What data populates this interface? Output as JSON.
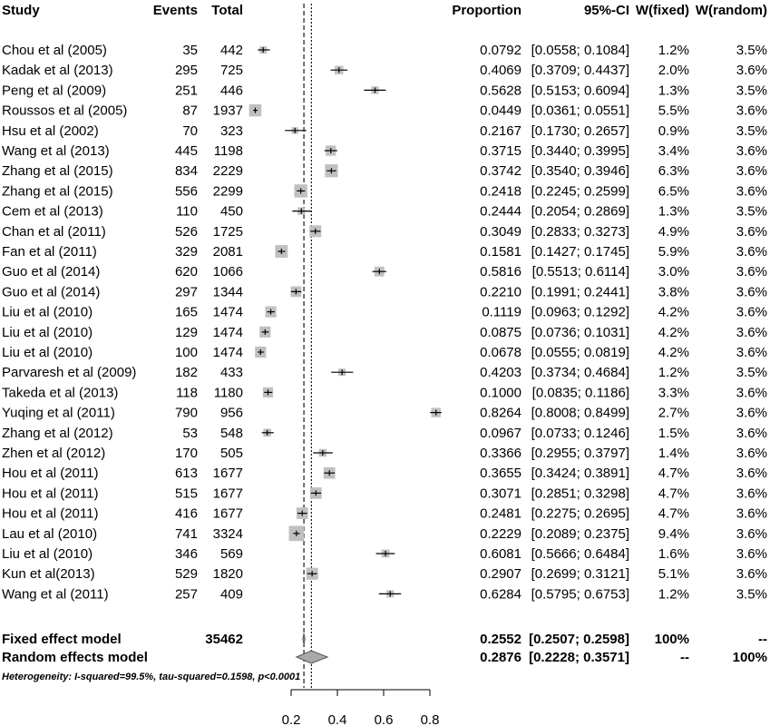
{
  "chart_data": {
    "type": "forest",
    "headers": {
      "study": "Study",
      "events": "Events",
      "total": "Total",
      "proportion": "Proportion",
      "ci": "95%-CI",
      "w_fixed": "W(fixed)",
      "w_random": "W(random)"
    },
    "studies": [
      {
        "name": "Chou et al (2005)",
        "events": "35",
        "total": "442",
        "prop": 0.0792,
        "lo": 0.0558,
        "hi": 0.1084,
        "prop_text": "0.0792",
        "ci_text": "[0.0558; 0.1084]",
        "w_fixed": "1.2%",
        "w_random": "3.5%",
        "wf": 1.2
      },
      {
        "name": "Kadak et al (2013)",
        "events": "295",
        "total": "725",
        "prop": 0.4069,
        "lo": 0.3709,
        "hi": 0.4437,
        "prop_text": "0.4069",
        "ci_text": "[0.3709; 0.4437]",
        "w_fixed": "2.0%",
        "w_random": "3.6%",
        "wf": 2.0
      },
      {
        "name": "Peng et al (2009)",
        "events": "251",
        "total": "446",
        "prop": 0.5628,
        "lo": 0.5153,
        "hi": 0.6094,
        "prop_text": "0.5628",
        "ci_text": "[0.5153; 0.6094]",
        "w_fixed": "1.3%",
        "w_random": "3.5%",
        "wf": 1.3
      },
      {
        "name": "Roussos et al (2005)",
        "events": "87",
        "total": "1937",
        "prop": 0.0449,
        "lo": 0.0361,
        "hi": 0.0551,
        "prop_text": "0.0449",
        "ci_text": "[0.0361; 0.0551]",
        "w_fixed": "5.5%",
        "w_random": "3.6%",
        "wf": 5.5
      },
      {
        "name": "Hsu et al (2002)",
        "events": "70",
        "total": "323",
        "prop": 0.2167,
        "lo": 0.173,
        "hi": 0.2657,
        "prop_text": "0.2167",
        "ci_text": "[0.1730; 0.2657]",
        "w_fixed": "0.9%",
        "w_random": "3.5%",
        "wf": 0.9
      },
      {
        "name": "Wang et al (2013)",
        "events": "445",
        "total": "1198",
        "prop": 0.3715,
        "lo": 0.344,
        "hi": 0.3995,
        "prop_text": "0.3715",
        "ci_text": "[0.3440; 0.3995]",
        "w_fixed": "3.4%",
        "w_random": "3.6%",
        "wf": 3.4
      },
      {
        "name": "Zhang et al (2015)",
        "events": "834",
        "total": "2229",
        "prop": 0.3742,
        "lo": 0.354,
        "hi": 0.3946,
        "prop_text": "0.3742",
        "ci_text": "[0.3540; 0.3946]",
        "w_fixed": "6.3%",
        "w_random": "3.6%",
        "wf": 6.3
      },
      {
        "name": "Zhang et al (2015)",
        "events": "556",
        "total": "2299",
        "prop": 0.2418,
        "lo": 0.2245,
        "hi": 0.2599,
        "prop_text": "0.2418",
        "ci_text": "[0.2245; 0.2599]",
        "w_fixed": "6.5%",
        "w_random": "3.6%",
        "wf": 6.5
      },
      {
        "name": "Cem et al (2013)",
        "events": "110",
        "total": "450",
        "prop": 0.2444,
        "lo": 0.2054,
        "hi": 0.2869,
        "prop_text": "0.2444",
        "ci_text": "[0.2054; 0.2869]",
        "w_fixed": "1.3%",
        "w_random": "3.5%",
        "wf": 1.3
      },
      {
        "name": "Chan et al (2011)",
        "events": "526",
        "total": "1725",
        "prop": 0.3049,
        "lo": 0.2833,
        "hi": 0.3273,
        "prop_text": "0.3049",
        "ci_text": "[0.2833; 0.3273]",
        "w_fixed": "4.9%",
        "w_random": "3.6%",
        "wf": 4.9
      },
      {
        "name": "Fan et al (2011)",
        "events": "329",
        "total": "2081",
        "prop": 0.1581,
        "lo": 0.1427,
        "hi": 0.1745,
        "prop_text": "0.1581",
        "ci_text": "[0.1427; 0.1745]",
        "w_fixed": "5.9%",
        "w_random": "3.6%",
        "wf": 5.9
      },
      {
        "name": "Guo et al (2014)",
        "events": "620",
        "total": "1066",
        "prop": 0.5816,
        "lo": 0.5513,
        "hi": 0.6114,
        "prop_text": "0.5816",
        "ci_text": "[0.5513; 0.6114]",
        "w_fixed": "3.0%",
        "w_random": "3.6%",
        "wf": 3.0
      },
      {
        "name": "Guo et al (2014)",
        "events": "297",
        "total": "1344",
        "prop": 0.221,
        "lo": 0.1991,
        "hi": 0.2441,
        "prop_text": "0.2210",
        "ci_text": "[0.1991; 0.2441]",
        "w_fixed": "3.8%",
        "w_random": "3.6%",
        "wf": 3.8
      },
      {
        "name": "Liu et al (2010)",
        "events": "165",
        "total": "1474",
        "prop": 0.1119,
        "lo": 0.0963,
        "hi": 0.1292,
        "prop_text": "0.1119",
        "ci_text": "[0.0963; 0.1292]",
        "w_fixed": "4.2%",
        "w_random": "3.6%",
        "wf": 4.2
      },
      {
        "name": "Liu et al (2010)",
        "events": "129",
        "total": "1474",
        "prop": 0.0875,
        "lo": 0.0736,
        "hi": 0.1031,
        "prop_text": "0.0875",
        "ci_text": "[0.0736; 0.1031]",
        "w_fixed": "4.2%",
        "w_random": "3.6%",
        "wf": 4.2
      },
      {
        "name": "Liu et al (2010)",
        "events": "100",
        "total": "1474",
        "prop": 0.0678,
        "lo": 0.0555,
        "hi": 0.0819,
        "prop_text": "0.0678",
        "ci_text": "[0.0555; 0.0819]",
        "w_fixed": "4.2%",
        "w_random": "3.6%",
        "wf": 4.2
      },
      {
        "name": "Parvaresh et al (2009)",
        "events": "182",
        "total": "433",
        "prop": 0.4203,
        "lo": 0.3734,
        "hi": 0.4684,
        "prop_text": "0.4203",
        "ci_text": "[0.3734; 0.4684]",
        "w_fixed": "1.2%",
        "w_random": "3.5%",
        "wf": 1.2
      },
      {
        "name": "Takeda et al (2013)",
        "events": "118",
        "total": "1180",
        "prop": 0.1,
        "lo": 0.0835,
        "hi": 0.1186,
        "prop_text": "0.1000",
        "ci_text": "[0.0835; 0.1186]",
        "w_fixed": "3.3%",
        "w_random": "3.6%",
        "wf": 3.3
      },
      {
        "name": "Yuqing et al (2011)",
        "events": "790",
        "total": "956",
        "prop": 0.8264,
        "lo": 0.8008,
        "hi": 0.8499,
        "prop_text": "0.8264",
        "ci_text": "[0.8008; 0.8499]",
        "w_fixed": "2.7%",
        "w_random": "3.6%",
        "wf": 2.7
      },
      {
        "name": "Zhang et al (2012)",
        "events": "53",
        "total": "548",
        "prop": 0.0967,
        "lo": 0.0733,
        "hi": 0.1246,
        "prop_text": "0.0967",
        "ci_text": "[0.0733; 0.1246]",
        "w_fixed": "1.5%",
        "w_random": "3.6%",
        "wf": 1.5
      },
      {
        "name": "Zhen  et al (2012)",
        "events": "170",
        "total": "505",
        "prop": 0.3366,
        "lo": 0.2955,
        "hi": 0.3797,
        "prop_text": "0.3366",
        "ci_text": "[0.2955; 0.3797]",
        "w_fixed": "1.4%",
        "w_random": "3.6%",
        "wf": 1.4
      },
      {
        "name": "Hou et al (2011)",
        "events": "613",
        "total": "1677",
        "prop": 0.3655,
        "lo": 0.3424,
        "hi": 0.3891,
        "prop_text": "0.3655",
        "ci_text": "[0.3424; 0.3891]",
        "w_fixed": "4.7%",
        "w_random": "3.6%",
        "wf": 4.7
      },
      {
        "name": "Hou et al (2011)",
        "events": "515",
        "total": "1677",
        "prop": 0.3071,
        "lo": 0.2851,
        "hi": 0.3298,
        "prop_text": "0.3071",
        "ci_text": "[0.2851; 0.3298]",
        "w_fixed": "4.7%",
        "w_random": "3.6%",
        "wf": 4.7
      },
      {
        "name": "Hou  et al (2011)",
        "events": "416",
        "total": "1677",
        "prop": 0.2481,
        "lo": 0.2275,
        "hi": 0.2695,
        "prop_text": "0.2481",
        "ci_text": "[0.2275; 0.2695]",
        "w_fixed": "4.7%",
        "w_random": "3.6%",
        "wf": 4.7
      },
      {
        "name": "Lau et al (2010)",
        "events": "741",
        "total": "3324",
        "prop": 0.2229,
        "lo": 0.2089,
        "hi": 0.2375,
        "prop_text": "0.2229",
        "ci_text": "[0.2089; 0.2375]",
        "w_fixed": "9.4%",
        "w_random": "3.6%",
        "wf": 9.4
      },
      {
        "name": "Liu et al (2010)",
        "events": "346",
        "total": "569",
        "prop": 0.6081,
        "lo": 0.5666,
        "hi": 0.6484,
        "prop_text": "0.6081",
        "ci_text": "[0.5666; 0.6484]",
        "w_fixed": "1.6%",
        "w_random": "3.6%",
        "wf": 1.6
      },
      {
        "name": "Kun et al(2013)",
        "events": "529",
        "total": "1820",
        "prop": 0.2907,
        "lo": 0.2699,
        "hi": 0.3121,
        "prop_text": "0.2907",
        "ci_text": "[0.2699; 0.3121]",
        "w_fixed": "5.1%",
        "w_random": "3.6%",
        "wf": 5.1
      },
      {
        "name": "Wang et al (2011)",
        "events": "257",
        "total": "409",
        "prop": 0.6284,
        "lo": 0.5795,
        "hi": 0.6753,
        "prop_text": "0.6284",
        "ci_text": "[0.5795; 0.6753]",
        "w_fixed": "1.2%",
        "w_random": "3.5%",
        "wf": 1.2
      }
    ],
    "fixed": {
      "label": "Fixed effect model",
      "total": "35462",
      "prop": 0.2552,
      "lo": 0.2507,
      "hi": 0.2598,
      "prop_text": "0.2552",
      "ci_text": "[0.2507; 0.2598]",
      "w_fixed": "100%",
      "w_random": "--"
    },
    "random": {
      "label": "Random effects model",
      "prop": 0.2876,
      "lo": 0.2228,
      "hi": 0.3571,
      "prop_text": "0.2876",
      "ci_text": "[0.2228; 0.3571]",
      "w_fixed": "--",
      "w_random": "100%"
    },
    "heterogeneity": "Heterogeneity: I-squared=99.5%, tau-squared=0.1598, p<0.0001",
    "x_ticks": [
      0.2,
      0.4,
      0.6,
      0.8
    ],
    "x_tick_labels": [
      "0.2",
      "0.4",
      "0.6",
      "0.8"
    ],
    "xlim": [
      0.0,
      0.85
    ]
  }
}
